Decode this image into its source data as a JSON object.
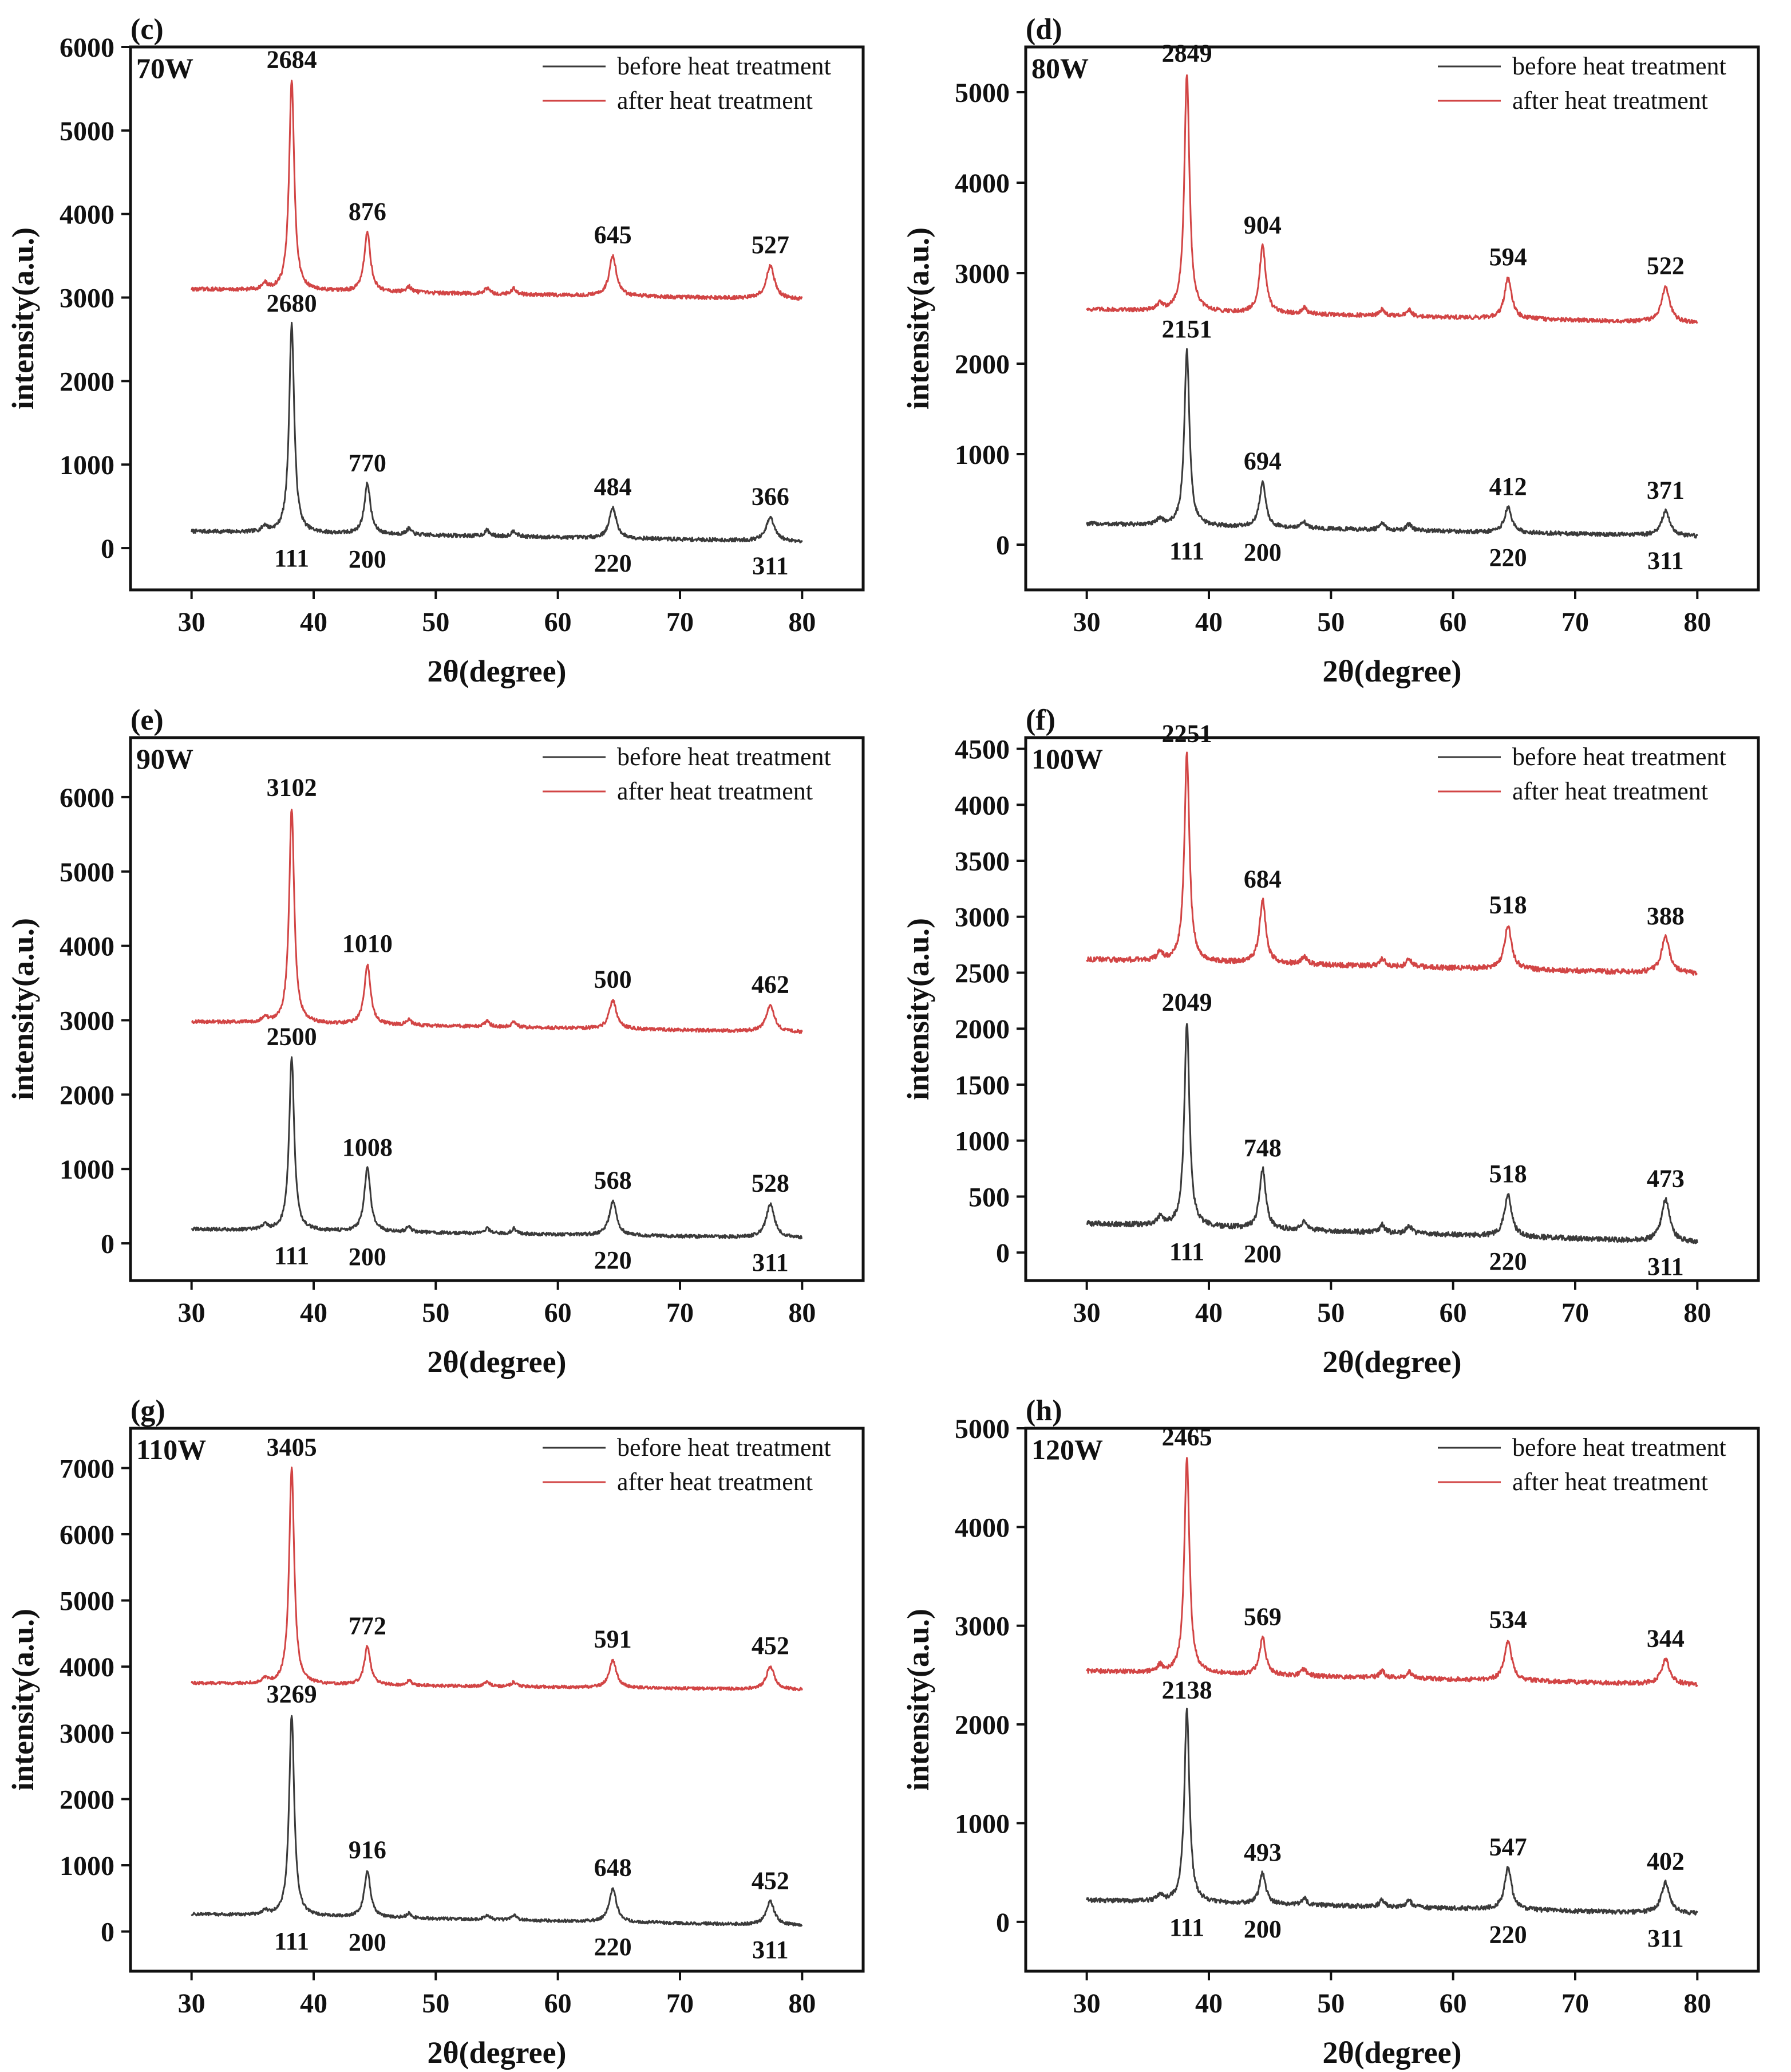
{
  "figure": {
    "legend_entries": [
      "before heat treatment",
      "after heat treatment"
    ],
    "x_axis_title": "2θ(degree)",
    "y_axis_title": "intensity(a.u.)",
    "colors": {
      "before": "#3a3a3a",
      "after": "#d24545",
      "axes": "#111111",
      "text": "#111111"
    }
  },
  "chart_data": [
    {
      "type": "line",
      "panel": "(c)",
      "label": "70W",
      "xlabel": "2θ(degree)",
      "ylabel": "intensity(a.u.)",
      "xlim": [
        25,
        85
      ],
      "ylim": [
        -500,
        6000
      ],
      "xticks": [
        30,
        40,
        50,
        60,
        70,
        80
      ],
      "yticks": [
        0,
        1000,
        2000,
        3000,
        4000,
        5000,
        6000
      ],
      "legend": [
        "before heat treatment",
        "after heat treatment"
      ],
      "legend_position": "top-right",
      "hkl": [
        "111",
        "200",
        "220",
        "311"
      ],
      "series": [
        {
          "name": "before heat treatment",
          "color": "#3a3a3a",
          "baseline_start": 200,
          "baseline_end": 80,
          "peak_heights": [
            2680,
            770,
            484,
            366
          ],
          "peak_labels": [
            "2680",
            "770",
            "484",
            "366"
          ]
        },
        {
          "name": "after heat treatment",
          "color": "#d24545",
          "baseline_start": 3100,
          "baseline_end": 2980,
          "peak_heights": [
            5600,
            3780,
            3500,
            3380
          ],
          "peak_labels": [
            "2684",
            "876",
            "645",
            "527"
          ]
        }
      ]
    },
    {
      "type": "line",
      "panel": "(d)",
      "label": "80W",
      "xlabel": "2θ(degree)",
      "ylabel": "intensity(a.u.)",
      "xlim": [
        25,
        85
      ],
      "ylim": [
        -500,
        5500
      ],
      "xticks": [
        30,
        40,
        50,
        60,
        70,
        80
      ],
      "yticks": [
        0,
        1000,
        2000,
        3000,
        4000,
        5000
      ],
      "legend": [
        "before heat treatment",
        "after heat treatment"
      ],
      "legend_position": "top-right",
      "hkl": [
        "111",
        "200",
        "220",
        "311"
      ],
      "series": [
        {
          "name": "before heat treatment",
          "color": "#3a3a3a",
          "baseline_start": 230,
          "baseline_end": 90,
          "peak_heights": [
            2151,
            694,
            412,
            371
          ],
          "peak_labels": [
            "2151",
            "694",
            "412",
            "371"
          ]
        },
        {
          "name": "after heat treatment",
          "color": "#d24545",
          "baseline_start": 2600,
          "baseline_end": 2450,
          "peak_heights": [
            5200,
            3300,
            2950,
            2850
          ],
          "peak_labels": [
            "2849",
            "904",
            "594",
            "522"
          ]
        }
      ]
    },
    {
      "type": "line",
      "panel": "(e)",
      "label": "90W",
      "xlabel": "2θ(degree)",
      "ylabel": "intensity(a.u.)",
      "xlim": [
        25,
        85
      ],
      "ylim": [
        -500,
        6800
      ],
      "xticks": [
        30,
        40,
        50,
        60,
        70,
        80
      ],
      "yticks": [
        0,
        1000,
        2000,
        3000,
        4000,
        5000,
        6000
      ],
      "legend": [
        "before heat treatment",
        "after heat treatment"
      ],
      "legend_position": "top-right",
      "hkl": [
        "111",
        "200",
        "220",
        "311"
      ],
      "series": [
        {
          "name": "before heat treatment",
          "color": "#3a3a3a",
          "baseline_start": 190,
          "baseline_end": 70,
          "peak_heights": [
            2500,
            1008,
            568,
            528
          ],
          "peak_labels": [
            "2500",
            "1008",
            "568",
            "528"
          ]
        },
        {
          "name": "after heat treatment",
          "color": "#d24545",
          "baseline_start": 2980,
          "baseline_end": 2840,
          "peak_heights": [
            5850,
            3750,
            3270,
            3200
          ],
          "peak_labels": [
            "3102",
            "1010",
            "500",
            "462"
          ]
        }
      ]
    },
    {
      "type": "line",
      "panel": "(f)",
      "label": "100W",
      "xlabel": "2θ(degree)",
      "ylabel": "intensity(a.u.)",
      "xlim": [
        25,
        85
      ],
      "ylim": [
        -250,
        4600
      ],
      "xticks": [
        30,
        40,
        50,
        60,
        70,
        80
      ],
      "yticks": [
        0,
        500,
        1000,
        1500,
        2000,
        2500,
        3000,
        3500,
        4000,
        4500
      ],
      "legend": [
        "before heat treatment",
        "after heat treatment"
      ],
      "legend_position": "top-right",
      "hkl": [
        "111",
        "200",
        "220",
        "311"
      ],
      "series": [
        {
          "name": "before heat treatment",
          "color": "#3a3a3a",
          "baseline_start": 260,
          "baseline_end": 90,
          "peak_heights": [
            2049,
            748,
            518,
            473
          ],
          "peak_labels": [
            "2049",
            "748",
            "518",
            "473"
          ]
        },
        {
          "name": "after heat treatment",
          "color": "#d24545",
          "baseline_start": 2620,
          "baseline_end": 2490,
          "peak_heights": [
            4450,
            3150,
            2920,
            2820
          ],
          "peak_labels": [
            "2251",
            "684",
            "518",
            "388"
          ]
        }
      ]
    },
    {
      "type": "line",
      "panel": "(g)",
      "label": "110W",
      "xlabel": "2θ(degree)",
      "ylabel": "intensity(a.u.)",
      "xlim": [
        25,
        85
      ],
      "ylim": [
        -600,
        7600
      ],
      "xticks": [
        30,
        40,
        50,
        60,
        70,
        80
      ],
      "yticks": [
        0,
        1000,
        2000,
        3000,
        4000,
        5000,
        6000,
        7000
      ],
      "legend": [
        "before heat treatment",
        "after heat treatment"
      ],
      "legend_position": "top-right",
      "hkl": [
        "111",
        "200",
        "220",
        "311"
      ],
      "series": [
        {
          "name": "before heat treatment",
          "color": "#3a3a3a",
          "baseline_start": 260,
          "baseline_end": 90,
          "peak_heights": [
            3269,
            916,
            648,
            452
          ],
          "peak_labels": [
            "3269",
            "916",
            "648",
            "452"
          ]
        },
        {
          "name": "after heat treatment",
          "color": "#d24545",
          "baseline_start": 3750,
          "baseline_end": 3650,
          "peak_heights": [
            7000,
            4300,
            4100,
            4000
          ],
          "peak_labels": [
            "3405",
            "772",
            "591",
            "452"
          ]
        }
      ]
    },
    {
      "type": "line",
      "panel": "(h)",
      "label": "120W",
      "xlabel": "2θ(degree)",
      "ylabel": "intensity(a.u.)",
      "xlim": [
        25,
        85
      ],
      "ylim": [
        -500,
        5000
      ],
      "xticks": [
        30,
        40,
        50,
        60,
        70,
        80
      ],
      "yticks": [
        0,
        1000,
        2000,
        3000,
        4000,
        5000
      ],
      "legend": [
        "before heat treatment",
        "after heat treatment"
      ],
      "legend_position": "top-right",
      "hkl": [
        "111",
        "200",
        "220",
        "311"
      ],
      "series": [
        {
          "name": "before heat treatment",
          "color": "#3a3a3a",
          "baseline_start": 220,
          "baseline_end": 80,
          "peak_heights": [
            2138,
            493,
            547,
            402
          ],
          "peak_labels": [
            "2138",
            "493",
            "547",
            "402"
          ]
        },
        {
          "name": "after heat treatment",
          "color": "#d24545",
          "baseline_start": 2540,
          "baseline_end": 2400,
          "peak_heights": [
            4700,
            2880,
            2850,
            2660
          ],
          "peak_labels": [
            "2465",
            "569",
            "534",
            "344"
          ]
        }
      ]
    }
  ]
}
